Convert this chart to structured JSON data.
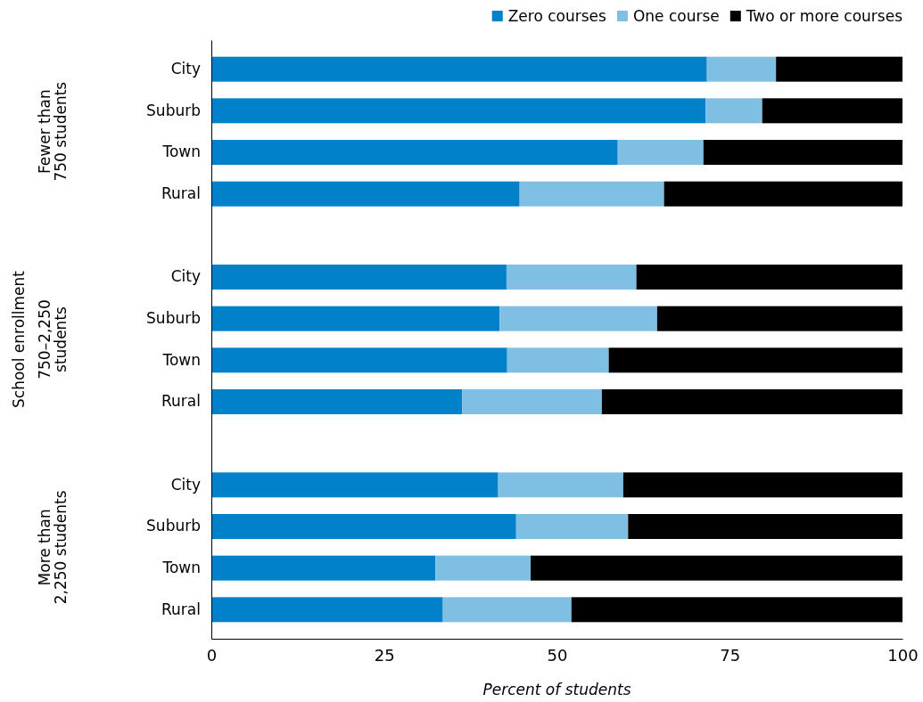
{
  "chart_data": {
    "type": "bar",
    "orientation": "horizontal",
    "stacked": true,
    "xlabel": "Percent of students",
    "categories": [
      "City",
      "Suburb",
      "Town",
      "Rural",
      null,
      "City",
      "Suburb",
      "Town",
      "Rural",
      null,
      "City",
      "Suburb",
      "Town",
      "Rural"
    ],
    "series": [
      {
        "name": "Zero courses",
        "color": "#0081c9",
        "values": [
          71.7,
          71.5,
          58.8,
          44.6,
          null,
          42.7,
          41.7,
          42.8,
          36.3,
          null,
          41.5,
          44.1,
          32.4,
          33.5
        ]
      },
      {
        "name": "One course",
        "color": "#80bfe4",
        "values": [
          10.0,
          8.2,
          12.4,
          20.9,
          null,
          18.8,
          22.8,
          14.7,
          20.2,
          null,
          18.1,
          16.2,
          13.8,
          18.6
        ]
      },
      {
        "name": "Two or more courses",
        "color": "#000000",
        "values": [
          18.3,
          20.3,
          28.8,
          34.5,
          null,
          38.5,
          35.5,
          42.5,
          43.5,
          null,
          40.4,
          39.7,
          53.8,
          47.9
        ]
      }
    ],
    "xlim": [
      0,
      100
    ],
    "xticks": [
      0,
      25,
      50,
      75,
      100
    ],
    "legend": "top right",
    "annotations": [
      "Fewer than\n750 students",
      "750–2,250\nstudents",
      "More than\n2,250 students",
      "School enrollment"
    ]
  }
}
